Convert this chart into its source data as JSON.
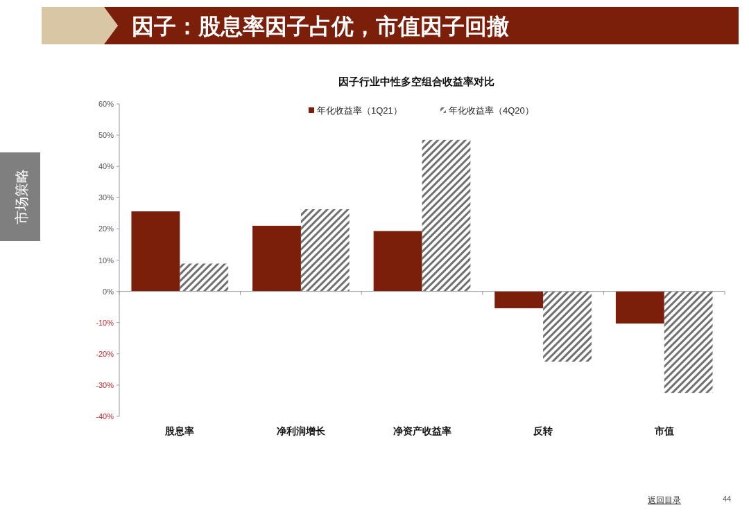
{
  "chart_data": {
    "type": "bar",
    "title": "因子：股息率因子占优，市值因子回撤",
    "subtitle": "因子行业中性多空组合收益率对比",
    "categories": [
      "股息率",
      "净利润增长",
      "净资产收益率",
      "反转",
      "市值"
    ],
    "series": [
      {
        "name": "年化收益率（1Q21）",
        "color": "#7b1e0a",
        "values": [
          25.6,
          21.0,
          19.3,
          -5.4,
          -10.3
        ]
      },
      {
        "name": "年化收益率（4Q20）",
        "color": "#707070",
        "values": [
          8.9,
          26.3,
          48.5,
          -22.5,
          -32.5
        ]
      }
    ],
    "ylim": [
      -40,
      60
    ],
    "yticks": [
      {
        "value": -40,
        "label": "-40%"
      },
      {
        "value": -30,
        "label": "-30%"
      },
      {
        "value": -20,
        "label": "-20%"
      },
      {
        "value": -10,
        "label": "-10%"
      },
      {
        "value": 0,
        "label": "0%"
      },
      {
        "value": 10,
        "label": "10%"
      },
      {
        "value": 20,
        "label": "20%"
      },
      {
        "value": 30,
        "label": "30%"
      },
      {
        "value": 40,
        "label": "40%"
      },
      {
        "value": 50,
        "label": "50%"
      },
      {
        "value": 60,
        "label": "60%"
      }
    ],
    "legend": "top",
    "annotations": [
      "市场策略",
      "返回目录",
      "44"
    ]
  }
}
